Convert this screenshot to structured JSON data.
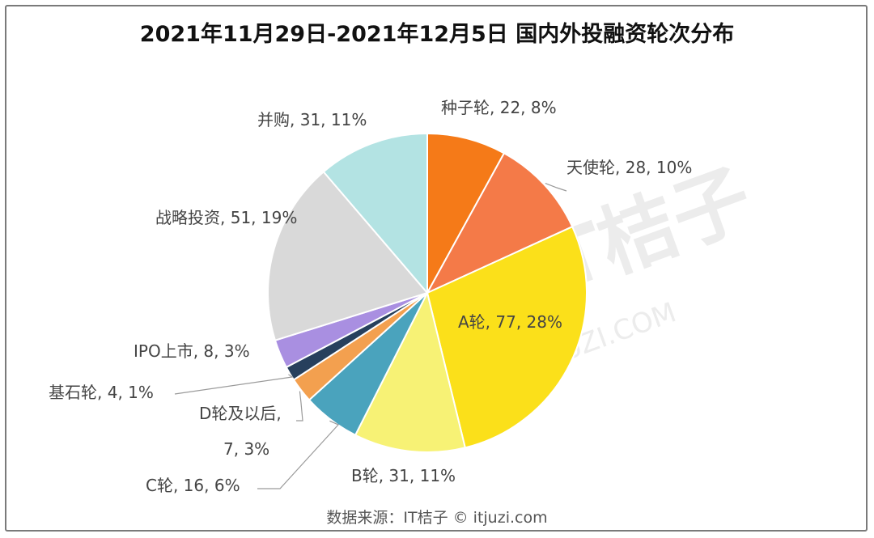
{
  "chart_data": {
    "type": "pie",
    "title": "2021年11月29日-2021年12月5日 国内外投融资轮次分布",
    "start_angle_deg": 0,
    "direction": "clockwise",
    "slices": [
      {
        "label": "种子轮",
        "value": 22,
        "percent": "8%",
        "color": "#f57a18",
        "data_label": "种子轮, 22, 8%"
      },
      {
        "label": "天使轮",
        "value": 28,
        "percent": "10%",
        "color": "#f47a48",
        "data_label": "天使轮, 28, 10%"
      },
      {
        "label": "A轮",
        "value": 77,
        "percent": "28%",
        "color": "#fbe01a",
        "data_label": "A轮, 77, 28%"
      },
      {
        "label": "B轮",
        "value": 31,
        "percent": "11%",
        "color": "#f7f275",
        "data_label": "B轮, 31, 11%"
      },
      {
        "label": "C轮",
        "value": 16,
        "percent": "6%",
        "color": "#4aa3bd",
        "data_label": "C轮, 16, 6%"
      },
      {
        "label": "D轮及以后",
        "value": 7,
        "percent": "3%",
        "color": "#f3a04f",
        "data_label_line1": "D轮及以后,",
        "data_label_line2": "7, 3%"
      },
      {
        "label": "基石轮",
        "value": 4,
        "percent": "1%",
        "color": "#27405d",
        "data_label": "基石轮, 4, 1%"
      },
      {
        "label": "IPO上市",
        "value": 8,
        "percent": "3%",
        "color": "#a98fe1",
        "data_label": "IPO上市, 8, 3%"
      },
      {
        "label": "战略投资",
        "value": 51,
        "percent": "19%",
        "color": "#d9d9d9",
        "data_label": "战略投资, 51, 19%"
      },
      {
        "label": "并购",
        "value": 31,
        "percent": "11%",
        "color": "#b3e3e3",
        "data_label": "并购, 31, 11%"
      }
    ]
  },
  "watermark": {
    "text": "IT桔子",
    "sub": "ITJUZI.COM"
  },
  "source": "数据来源：IT桔子 © itjuzi.com"
}
